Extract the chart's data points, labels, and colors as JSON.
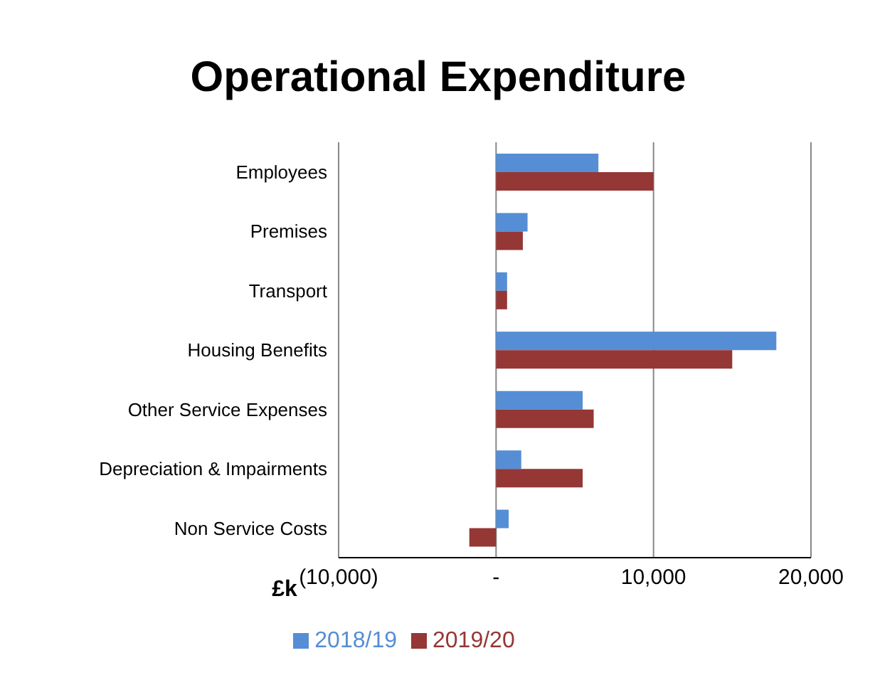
{
  "chart_data": {
    "type": "bar",
    "orientation": "horizontal",
    "title": "Operational Expenditure",
    "xlabel": "£k",
    "categories": [
      "Employees",
      "Premises",
      "Transport",
      "Housing Benefits",
      "Other Service Expenses",
      "Depreciation & Impairments",
      "Non Service Costs"
    ],
    "series": [
      {
        "name": "2018/19",
        "color": "#558ed5",
        "values": [
          6500,
          2000,
          700,
          17800,
          5500,
          1600,
          800
        ]
      },
      {
        "name": "2019/20",
        "color": "#953735",
        "values": [
          10000,
          1700,
          700,
          15000,
          6200,
          5500,
          -1700
        ]
      }
    ],
    "xlim": [
      -10000,
      20000
    ],
    "xticks": [
      {
        "value": -10000,
        "label": "(10,000)"
      },
      {
        "value": 0,
        "label": "-"
      },
      {
        "value": 10000,
        "label": "10,000"
      },
      {
        "value": 20000,
        "label": "20,000"
      }
    ],
    "grid": "x",
    "legend": "bottom"
  }
}
